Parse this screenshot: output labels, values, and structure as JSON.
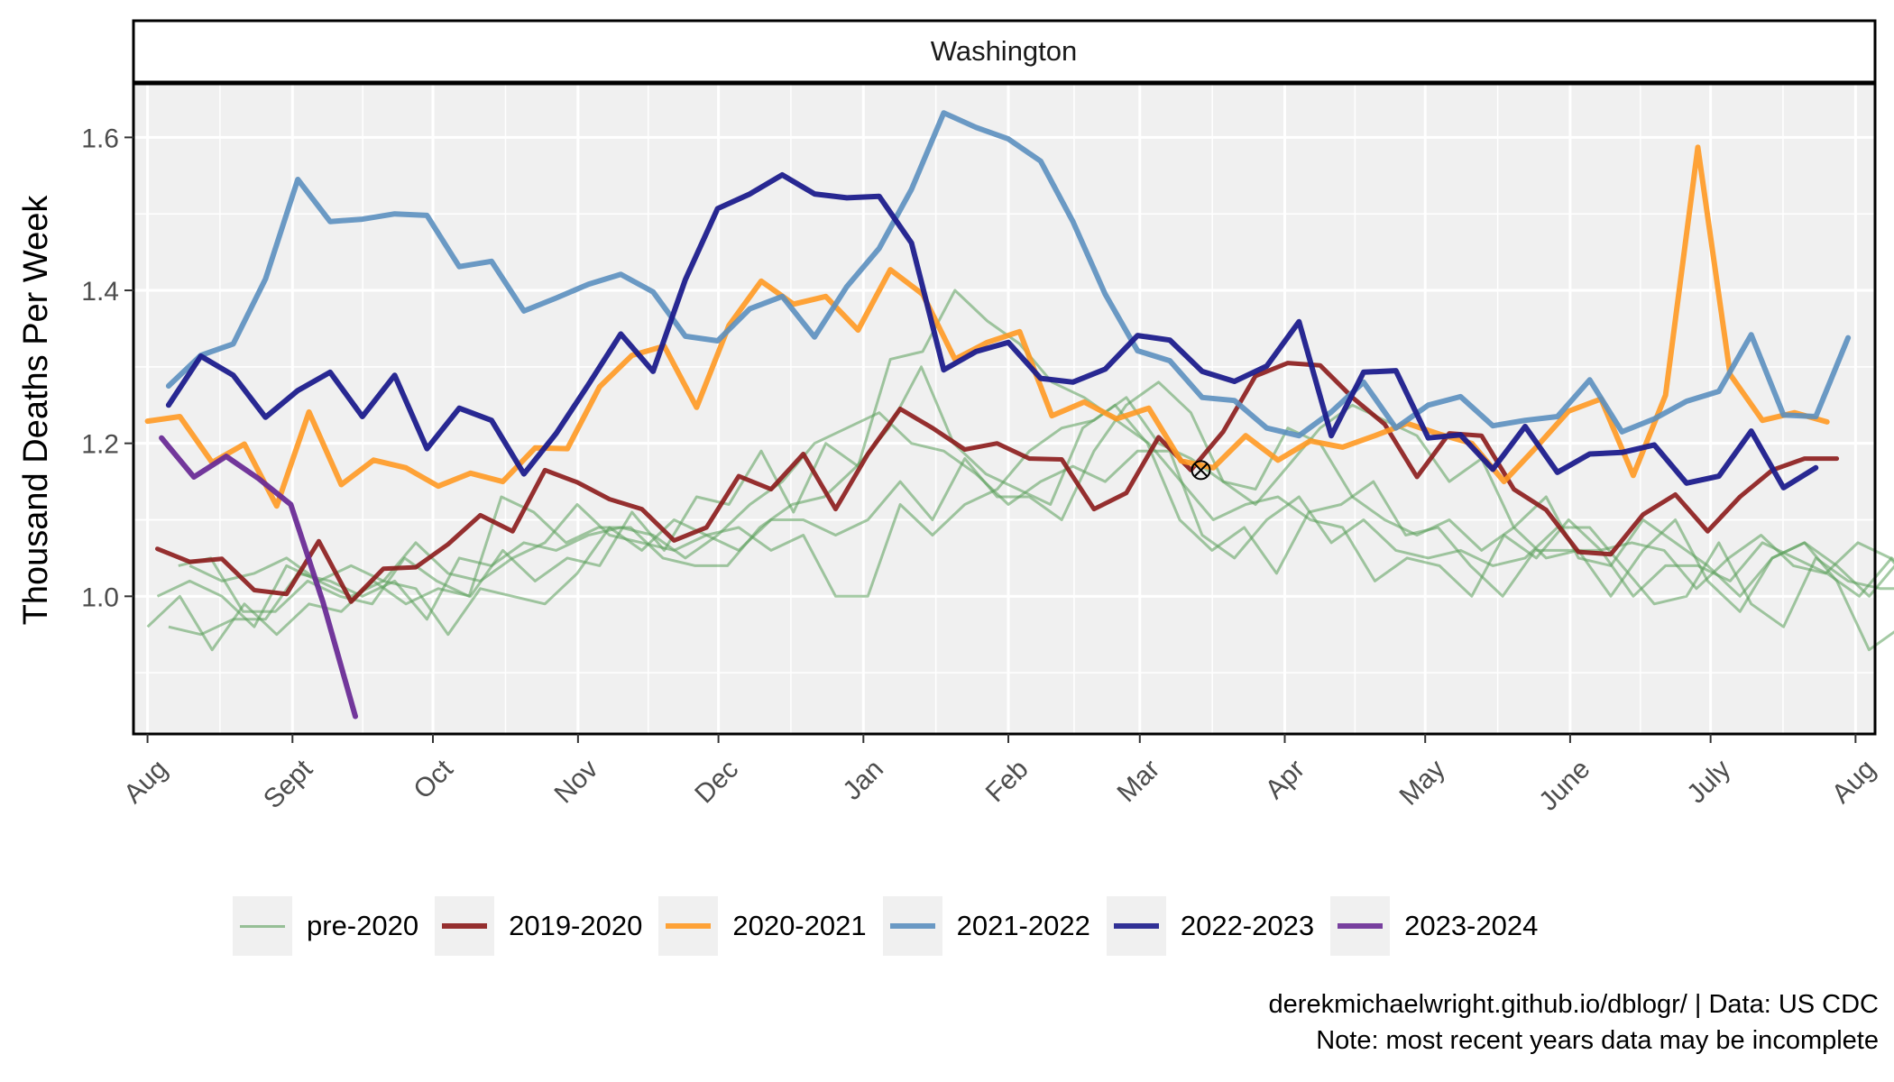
{
  "chart_data": {
    "type": "line",
    "strip_title": "Washington",
    "ylabel": "Thousand Deaths Per Week",
    "ylim": [
      0.82,
      1.67
    ],
    "y_ticks": [
      1.0,
      1.2,
      1.4,
      1.6
    ],
    "y_tick_labels": [
      "1.0",
      "1.2",
      "1.4",
      "1.6"
    ],
    "xlim": [
      -0.1,
      12.3
    ],
    "x_ticks": [
      0,
      1.032,
      2.032,
      3.065,
      4.065,
      5.097,
      6.129,
      7.065,
      8.097,
      9.097,
      10.129,
      11.129,
      12.161
    ],
    "x_tick_labels": [
      "Aug",
      "Sept",
      "Oct",
      "Nov",
      "Dec",
      "Jan",
      "Feb",
      "Mar",
      "Apr",
      "May",
      "June",
      "July",
      "Aug"
    ],
    "grid": true,
    "legend_position": "bottom",
    "marker": {
      "x": 7.5,
      "y": 1.165
    },
    "pre2020_series": [
      {
        "start": 0.0,
        "values": [
          0.96,
          1.0,
          0.93,
          0.99,
          0.95,
          0.99,
          0.98,
          1.02,
          0.99,
          1.01,
          1.0,
          1.06,
          1.02,
          1.05,
          1.04,
          1.11,
          1.06,
          1.13,
          1.12,
          1.19,
          1.11,
          1.2,
          1.17,
          1.31,
          1.32,
          1.4,
          1.36,
          1.33,
          1.28,
          1.26,
          1.23,
          1.2,
          1.15,
          1.1,
          1.12,
          1.13,
          1.1,
          1.09,
          1.02,
          1.05,
          1.04,
          1.0,
          1.08,
          1.05,
          1.1,
          1.06,
          1.0,
          1.04,
          1.04,
          1.02,
          1.07,
          1.05,
          1.03,
          1.0,
          1.05,
          1.01,
          1.0
        ]
      },
      {
        "start": 0.07,
        "values": [
          1.0,
          1.02,
          1.0,
          0.96,
          1.04,
          1.02,
          1.0,
          1.02,
          1.01,
          0.95,
          1.01,
          1.0,
          0.99,
          1.03,
          1.09,
          1.06,
          1.1,
          1.08,
          1.09,
          1.06,
          1.08,
          1.0,
          1.0,
          1.12,
          1.08,
          1.12,
          1.14,
          1.19,
          1.22,
          1.23,
          1.26,
          1.2,
          1.18,
          1.15,
          1.14,
          1.22,
          1.2,
          1.13,
          1.1,
          1.08,
          1.1,
          1.06,
          1.09,
          1.05,
          1.06,
          1.0,
          1.06,
          1.1,
          1.02,
          0.98,
          1.05,
          1.07,
          1.02,
          0.93,
          0.96,
          1.04,
          1.06,
          1.1,
          1.06,
          1.04,
          1.05
        ]
      },
      {
        "start": 0.15,
        "values": [
          0.96,
          0.95,
          0.97,
          0.97,
          1.03,
          1.02,
          1.0,
          1.02,
          0.97,
          1.05,
          1.04,
          1.07,
          1.06,
          1.08,
          1.09,
          1.08,
          1.05,
          1.08,
          1.12,
          1.15,
          1.2,
          1.22,
          1.24,
          1.2,
          1.19,
          1.16,
          1.12,
          1.15,
          1.17,
          1.15,
          1.19,
          1.19,
          1.08,
          1.05,
          1.1,
          1.13,
          1.07,
          1.1,
          1.06,
          1.05,
          1.06,
          1.04,
          1.05,
          1.09,
          1.09,
          1.04,
          0.99,
          1.0,
          1.07,
          0.99,
          0.96,
          1.05,
          1.02,
          1.01,
          1.01,
          1.02,
          1.02,
          1.03,
          1.0
        ]
      },
      {
        "start": 0.22,
        "values": [
          1.04,
          1.05,
          0.98,
          0.98,
          1.02,
          1.0,
          0.99,
          1.05,
          1.02,
          1.0,
          1.13,
          1.11,
          1.07,
          1.09,
          1.09,
          1.05,
          1.04,
          1.04,
          1.09,
          1.12,
          1.13,
          1.17,
          1.22,
          1.3,
          1.2,
          1.16,
          1.14,
          1.12,
          1.22,
          1.25,
          1.2,
          1.1,
          1.06,
          1.09,
          1.03,
          1.11,
          1.12,
          1.15,
          1.08,
          1.09,
          1.04,
          1.0,
          1.06,
          1.06,
          1.06,
          1.07,
          1.06,
          1.01,
          1.05,
          1.08,
          1.04,
          1.03,
          1.07,
          1.05,
          1.0,
          1.07,
          1.05,
          1.06,
          1.01,
          1.0
        ]
      },
      {
        "start": 0.3,
        "values": [
          1.04,
          1.02,
          1.03,
          1.05,
          1.02,
          1.04,
          1.02,
          1.07,
          1.03,
          1.02,
          1.05,
          1.07,
          1.12,
          1.08,
          1.07,
          1.06,
          1.08,
          1.06,
          1.1,
          1.1,
          1.08,
          1.1,
          1.15,
          1.1,
          1.18,
          1.13,
          1.13,
          1.1,
          1.19,
          1.25,
          1.28,
          1.24,
          1.15,
          1.12,
          1.17,
          1.22,
          1.25,
          1.23,
          1.21,
          1.15,
          1.18,
          1.09,
          1.13,
          1.05,
          1.04,
          1.1,
          1.07,
          1.04,
          1.0,
          1.05,
          1.07,
          1.04,
          1.0,
          1.05,
          1.07,
          1.1,
          1.04,
          1.02,
          1.05,
          1.07
        ]
      }
    ],
    "series": [
      {
        "name": "2019-2020",
        "color": "#8b1a1a",
        "width": 5,
        "opacity": 0.9,
        "start": 0.07,
        "values": [
          1.062,
          1.045,
          1.049,
          1.008,
          1.003,
          1.072,
          0.993,
          1.036,
          1.038,
          1.068,
          1.106,
          1.085,
          1.165,
          1.149,
          1.127,
          1.114,
          1.073,
          1.09,
          1.157,
          1.14,
          1.186,
          1.114,
          1.186,
          1.245,
          1.22,
          1.192,
          1.2,
          1.18,
          1.179,
          1.114,
          1.135,
          1.208,
          1.165,
          1.215,
          1.288,
          1.305,
          1.302,
          1.26,
          1.225,
          1.156,
          1.213,
          1.21,
          1.14,
          1.113,
          1.058,
          1.055,
          1.107,
          1.133,
          1.085,
          1.13,
          1.165,
          1.18,
          1.18
        ]
      },
      {
        "name": "2020-2021",
        "color": "#ff9922",
        "width": 6,
        "opacity": 0.9,
        "start": 0.0,
        "values": [
          1.229,
          1.235,
          1.175,
          1.199,
          1.118,
          1.241,
          1.146,
          1.178,
          1.168,
          1.144,
          1.161,
          1.15,
          1.194,
          1.193,
          1.274,
          1.315,
          1.327,
          1.247,
          1.354,
          1.412,
          1.382,
          1.392,
          1.348,
          1.427,
          1.395,
          1.31,
          1.332,
          1.346,
          1.236,
          1.254,
          1.232,
          1.246,
          1.177,
          1.168,
          1.21,
          1.178,
          1.203,
          1.195,
          1.21,
          1.226,
          1.212,
          1.2,
          1.15,
          1.195,
          1.242,
          1.258,
          1.158,
          1.263,
          1.587,
          1.29,
          1.23,
          1.24,
          1.228
        ]
      },
      {
        "name": "2021-2022",
        "color": "#5b8fbf",
        "width": 6,
        "opacity": 0.9,
        "start": 0.15,
        "values": [
          1.275,
          1.315,
          1.33,
          1.415,
          1.545,
          1.49,
          1.493,
          1.5,
          1.498,
          1.431,
          1.438,
          1.373,
          1.39,
          1.408,
          1.421,
          1.398,
          1.34,
          1.334,
          1.376,
          1.392,
          1.339,
          1.405,
          1.455,
          1.532,
          1.632,
          1.613,
          1.598,
          1.569,
          1.49,
          1.395,
          1.321,
          1.308,
          1.26,
          1.256,
          1.22,
          1.21,
          1.241,
          1.28,
          1.22,
          1.25,
          1.261,
          1.223,
          1.23,
          1.235,
          1.283,
          1.215,
          1.232,
          1.255,
          1.268,
          1.342,
          1.237,
          1.235,
          1.338
        ]
      },
      {
        "name": "2022-2023",
        "color": "#1c1c8c",
        "width": 6,
        "opacity": 0.95,
        "start": 0.15,
        "values": [
          1.25,
          1.314,
          1.289,
          1.234,
          1.269,
          1.293,
          1.235,
          1.289,
          1.193,
          1.246,
          1.23,
          1.16,
          1.213,
          1.277,
          1.343,
          1.294,
          1.414,
          1.507,
          1.526,
          1.551,
          1.526,
          1.521,
          1.523,
          1.462,
          1.296,
          1.32,
          1.332,
          1.285,
          1.28,
          1.297,
          1.341,
          1.335,
          1.294,
          1.281,
          1.301,
          1.359,
          1.21,
          1.293,
          1.295,
          1.207,
          1.211,
          1.166,
          1.222,
          1.162,
          1.186,
          1.188,
          1.198,
          1.148,
          1.157,
          1.216,
          1.142,
          1.168
        ]
      },
      {
        "name": "2023-2024",
        "color": "#6a2c96",
        "width": 6,
        "opacity": 0.95,
        "start": 0.1,
        "values": [
          1.207,
          1.156,
          1.183,
          1.154,
          1.12,
          0.992,
          0.843
        ]
      }
    ],
    "legend": [
      {
        "label": "pre-2020",
        "color": "#5a9e5a"
      },
      {
        "label": "2019-2020",
        "color": "#8b1a1a"
      },
      {
        "label": "2020-2021",
        "color": "#ff9922"
      },
      {
        "label": "2021-2022",
        "color": "#5b8fbf"
      },
      {
        "label": "2022-2023",
        "color": "#1c1c8c"
      },
      {
        "label": "2023-2024",
        "color": "#6a2c96"
      }
    ]
  },
  "caption": {
    "line1": "derekmichaelwright.github.io/dblogr/ | Data: US CDC",
    "line2": "Note: most recent years data may be incomplete"
  }
}
